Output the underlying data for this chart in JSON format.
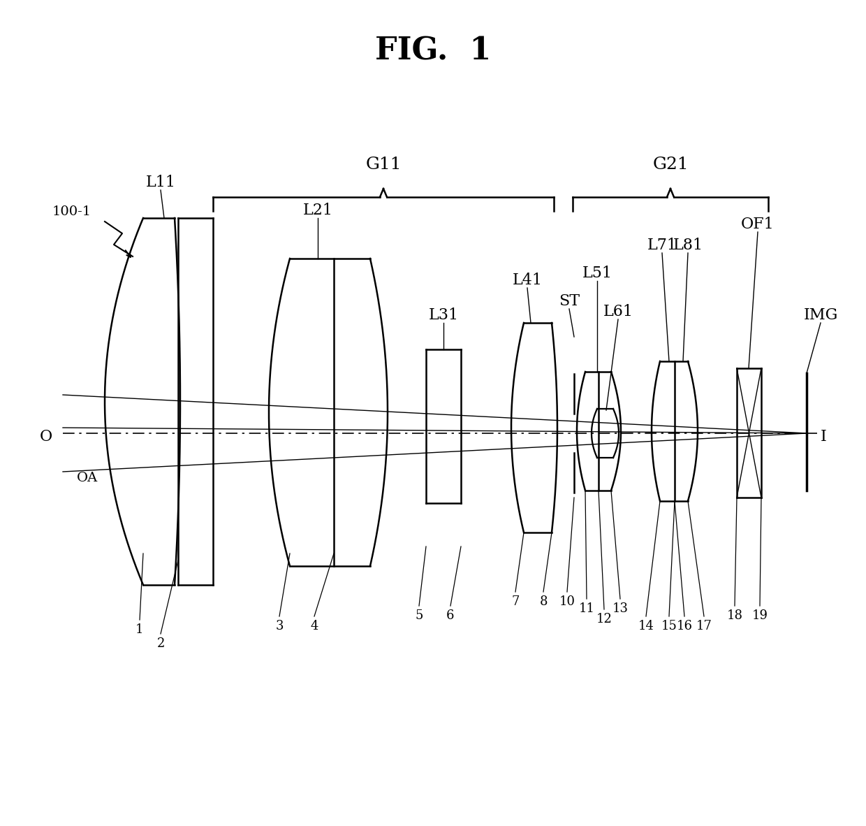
{
  "title": "FIG.  1",
  "bg": "#ffffff",
  "lc": "#000000",
  "figsize": [
    12.4,
    11.82
  ],
  "dpi": 100,
  "xlim": [
    0,
    1240
  ],
  "ylim": [
    0,
    1182
  ]
}
